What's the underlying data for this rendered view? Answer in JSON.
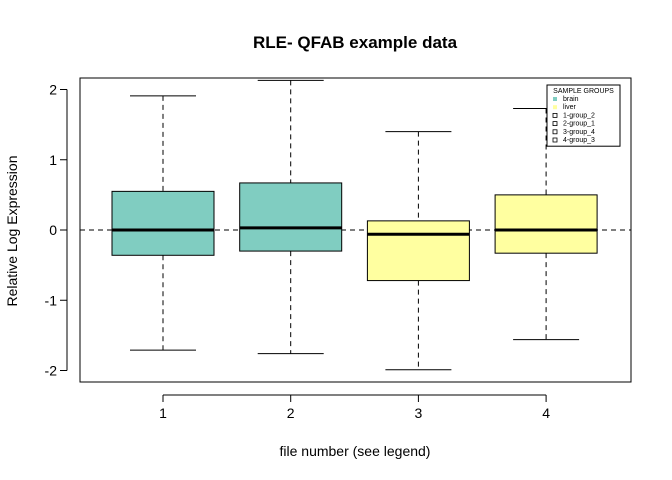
{
  "chart_data": {
    "type": "boxplot",
    "title": "RLE- QFAB example data",
    "xlabel": "file number (see legend)",
    "ylabel": "Relative Log Expression",
    "categories": [
      "1",
      "2",
      "3",
      "4"
    ],
    "ylim": [
      -2.15,
      2.2
    ],
    "yticks": [
      "-2",
      "-1",
      "0",
      "1",
      "2"
    ],
    "reference_line": 0,
    "boxes": [
      {
        "category": "1",
        "whisker_low": -1.71,
        "q1": -0.36,
        "median": 0.0,
        "q3": 0.55,
        "whisker_high": 1.91,
        "group": "brain"
      },
      {
        "category": "2",
        "whisker_low": -1.76,
        "q1": -0.3,
        "median": 0.03,
        "q3": 0.67,
        "whisker_high": 2.13,
        "group": "brain"
      },
      {
        "category": "3",
        "whisker_low": -1.99,
        "q1": -0.72,
        "median": -0.06,
        "q3": 0.13,
        "whisker_high": 1.4,
        "group": "liver"
      },
      {
        "category": "4",
        "whisker_low": -1.56,
        "q1": -0.33,
        "median": 0.0,
        "q3": 0.5,
        "whisker_high": 1.73,
        "group": "liver"
      }
    ],
    "legend": {
      "title": "SAMPLE GROUPS",
      "position": "top-right",
      "entries": [
        {
          "label": "brain",
          "color": "#80CDC1",
          "marker": "filled-square"
        },
        {
          "label": "liver",
          "color": "#FFFFA0",
          "marker": "filled-square"
        },
        {
          "label": "1-group_2",
          "color": "#000000",
          "marker": "open-square"
        },
        {
          "label": "2-group_1",
          "color": "#000000",
          "marker": "open-square"
        },
        {
          "label": "3-group_4",
          "color": "#000000",
          "marker": "open-square"
        },
        {
          "label": "4-group_3",
          "color": "#000000",
          "marker": "open-square"
        }
      ]
    },
    "colors": {
      "brain": "#80CDC1",
      "liver": "#FFFFA0"
    }
  }
}
